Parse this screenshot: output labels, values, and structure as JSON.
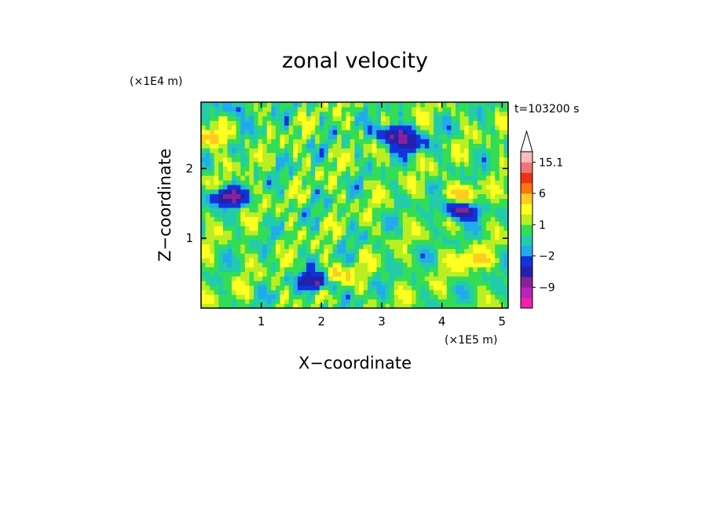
{
  "chart_data": {
    "type": "heatmap",
    "title": "zonal velocity",
    "xlabel": "X−coordinate",
    "ylabel": "Z−coordinate",
    "x_unit": "(×1E5 m)",
    "y_unit": "(×1E4 m)",
    "time_label": "t=103200 s",
    "xlim": [
      0.0,
      5.1
    ],
    "ylim": [
      0.0,
      2.95
    ],
    "x_ticks": [
      {
        "value": 1,
        "label": "1"
      },
      {
        "value": 2,
        "label": "2"
      },
      {
        "value": 3,
        "label": "3"
      },
      {
        "value": 4,
        "label": "4"
      },
      {
        "value": 5,
        "label": "5"
      }
    ],
    "y_ticks": [
      {
        "value": 1,
        "label": "1"
      },
      {
        "value": 2,
        "label": "2"
      }
    ],
    "colorbar": {
      "levels": [
        -16,
        -12,
        -9,
        -6,
        -4,
        -2,
        -1,
        0,
        1,
        2,
        4,
        6,
        9,
        12,
        15.1
      ],
      "colors": [
        "#ee22aa",
        "#bb22bb",
        "#882299",
        "#2222aa",
        "#1133dd",
        "#22aaee",
        "#22ccaa",
        "#33dd55",
        "#bbee22",
        "#ffff22",
        "#ffcc22",
        "#ff7711",
        "#ee3311",
        "#ee7777",
        "#ffbbbb"
      ],
      "labels": [
        {
          "value": -9,
          "label": "−9"
        },
        {
          "value": -2,
          "label": "−2"
        },
        {
          "value": 1,
          "label": "1"
        },
        {
          "value": 6,
          "label": "6"
        },
        {
          "value": 15.1,
          "label": "15.1"
        }
      ],
      "overflow_arrow": "top"
    },
    "features": [
      {
        "x": 0.45,
        "z": 1.6,
        "value": -8
      },
      {
        "x": 3.2,
        "z": 2.5,
        "value": -8
      },
      {
        "x": 4.3,
        "z": 1.4,
        "value": -8
      },
      {
        "x": 1.95,
        "z": 0.4,
        "value": -10
      },
      {
        "x": 2.2,
        "z": 0.45,
        "value": 6
      },
      {
        "x": 4.5,
        "z": 0.7,
        "value": 4
      },
      {
        "x": 4.3,
        "z": 1.65,
        "value": 4
      },
      {
        "x": 3.5,
        "z": 0.8,
        "value": -0.5
      },
      {
        "x": 0.2,
        "z": 2.45,
        "value": 5
      },
      {
        "x": 0.5,
        "z": 2.85,
        "value": -3
      },
      {
        "x": 3.45,
        "z": 2.35,
        "value": -5
      }
    ]
  }
}
